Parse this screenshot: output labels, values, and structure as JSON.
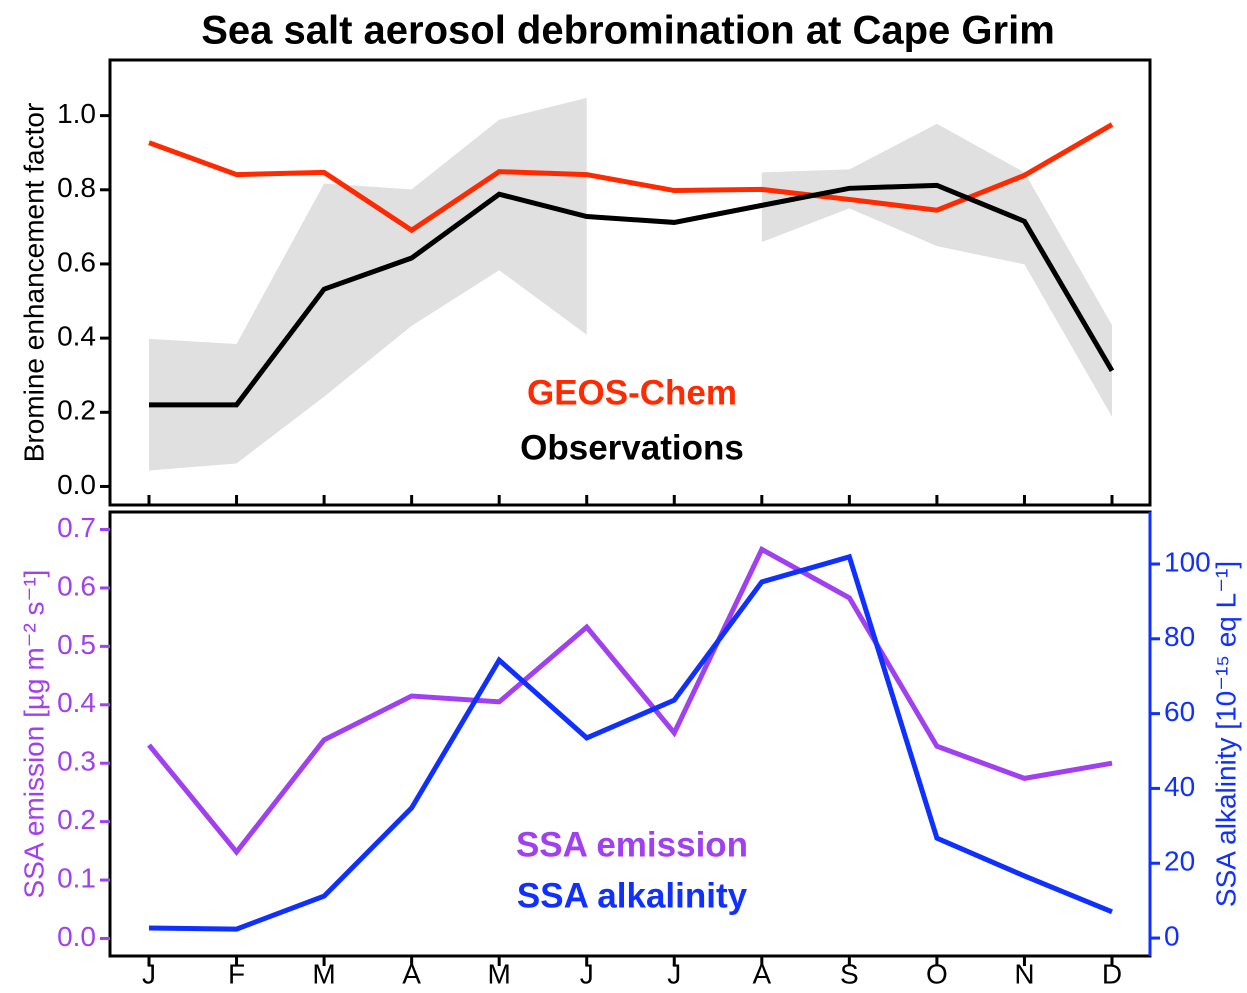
{
  "chart_data": [
    {
      "type": "line",
      "title": "Sea salt aerosol debromination at Cape Grim",
      "ylabel": "Bromine enhancement factor",
      "ylim": [
        -0.05,
        1.15
      ],
      "yticks": [
        {
          "value": 0,
          "label": "0.0"
        },
        {
          "value": 0.2,
          "label": "0.2"
        },
        {
          "value": 0.4,
          "label": "0.4"
        },
        {
          "value": 0.6,
          "label": "0.6"
        },
        {
          "value": 0.8,
          "label": "0.8"
        },
        {
          "value": 1,
          "label": "1.0"
        }
      ],
      "range": {
        "color": "#e0e0e0",
        "upper": [
          0.398,
          0.384,
          0.817,
          0.801,
          0.989,
          1.048,
          null,
          0.847,
          0.855,
          0.978,
          0.847,
          0.435
        ],
        "lower": [
          0.043,
          0.062,
          0.242,
          0.433,
          0.583,
          0.409,
          null,
          0.659,
          0.75,
          0.648,
          0.599,
          0.188
        ]
      },
      "series": [
        {
          "name": "GEOS-Chem",
          "color": "#ff2a00",
          "values": [
            0.927,
            0.841,
            0.847,
            0.691,
            0.849,
            0.841,
            0.798,
            0.801,
            0.774,
            0.745,
            0.839,
            0.976
          ]
        },
        {
          "name": "Observations",
          "color": "#000000",
          "values": [
            0.22,
            0.22,
            0.532,
            0.616,
            0.788,
            0.728,
            0.712,
            0.758,
            0.804,
            0.812,
            0.715,
            0.312
          ]
        }
      ]
    },
    {
      "type": "line",
      "categories": [
        "J",
        "F",
        "M",
        "A",
        "M",
        "J",
        "J",
        "A",
        "S",
        "O",
        "N",
        "D"
      ],
      "ylabel": "SSA emission [µg m⁻² s⁻¹]",
      "y2label": "SSA alkalinity [10⁻¹⁵ eq L⁻¹]",
      "ylim": [
        -0.03,
        0.73
      ],
      "yticks": [
        {
          "value": 0,
          "label": "0.0"
        },
        {
          "value": 0.1,
          "label": "0.1"
        },
        {
          "value": 0.2,
          "label": "0.2"
        },
        {
          "value": 0.3,
          "label": "0.3"
        },
        {
          "value": 0.4,
          "label": "0.4"
        },
        {
          "value": 0.5,
          "label": "0.5"
        },
        {
          "value": 0.6,
          "label": "0.6"
        },
        {
          "value": 0.7,
          "label": "0.7"
        }
      ],
      "y2lim": [
        -4.8,
        113.9
      ],
      "y2ticks": [
        0,
        20,
        40,
        60,
        80,
        100
      ],
      "ycolor": "#a040f0",
      "y2color": "#1030ff",
      "series": [
        {
          "name": "SSA emission",
          "color": "#a040f0",
          "values": [
            0.331,
            0.148,
            0.34,
            0.415,
            0.405,
            0.533,
            0.352,
            0.666,
            0.583,
            0.329,
            0.274,
            0.3
          ]
        },
        {
          "name": "SSA alkalinity",
          "color": "#1030ff",
          "axis": "y2",
          "values": [
            2.7,
            2.4,
            11.2,
            34.8,
            74.3,
            53.5,
            63.6,
            95.2,
            101.9,
            26.7,
            16.6,
            7.0
          ]
        }
      ]
    }
  ]
}
